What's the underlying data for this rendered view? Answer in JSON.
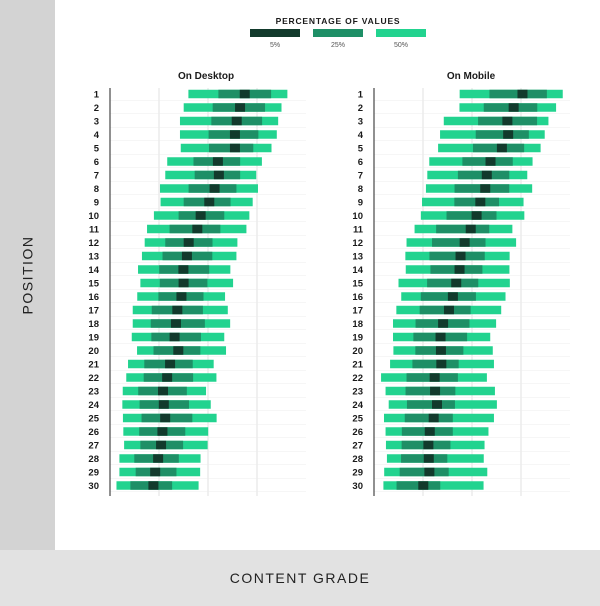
{
  "axes": {
    "y_label": "POSITION",
    "x_label": "CONTENT GRADE"
  },
  "legend": {
    "title": "PERCENTAGE OF VALUES",
    "items": [
      {
        "label": "5%",
        "color": "#123a2c"
      },
      {
        "label": "25%",
        "color": "#1e8f66"
      },
      {
        "label": "50%",
        "color": "#22d38f"
      }
    ]
  },
  "colors": {
    "median": "#123a2c",
    "band25": "#1e8f66",
    "band50": "#22d38f",
    "grid": "#d9d9d9",
    "axis": "#222222"
  },
  "chart_data": [
    {
      "type": "bar",
      "title": "On Desktop",
      "categories": [
        "1",
        "2",
        "3",
        "4",
        "5",
        "6",
        "7",
        "8",
        "9",
        "10",
        "11",
        "12",
        "13",
        "14",
        "15",
        "16",
        "17",
        "18",
        "19",
        "20",
        "21",
        "22",
        "23",
        "24",
        "25",
        "26",
        "27",
        "28",
        "29",
        "30"
      ],
      "series": [
        {
          "name": "50%",
          "values": [
            [
              0.4,
              0.905
            ],
            [
              0.376,
              0.875
            ],
            [
              0.357,
              0.858
            ],
            [
              0.357,
              0.851
            ],
            [
              0.361,
              0.824
            ],
            [
              0.292,
              0.775
            ],
            [
              0.282,
              0.746
            ],
            [
              0.255,
              0.755
            ],
            [
              0.258,
              0.728
            ],
            [
              0.224,
              0.711
            ],
            [
              0.189,
              0.696
            ],
            [
              0.177,
              0.65
            ],
            [
              0.163,
              0.645
            ],
            [
              0.143,
              0.614
            ],
            [
              0.155,
              0.628
            ],
            [
              0.139,
              0.587
            ],
            [
              0.116,
              0.601
            ],
            [
              0.116,
              0.613
            ],
            [
              0.111,
              0.583
            ],
            [
              0.138,
              0.592
            ],
            [
              0.092,
              0.529
            ],
            [
              0.083,
              0.543
            ],
            [
              0.065,
              0.49
            ],
            [
              0.063,
              0.514
            ],
            [
              0.066,
              0.544
            ],
            [
              0.068,
              0.501
            ],
            [
              0.072,
              0.498
            ],
            [
              0.048,
              0.462
            ],
            [
              0.048,
              0.46
            ],
            [
              0.033,
              0.452
            ]
          ]
        },
        {
          "name": "25%",
          "values": [
            [
              0.553,
              0.822
            ],
            [
              0.524,
              0.791
            ],
            [
              0.517,
              0.776
            ],
            [
              0.503,
              0.757
            ],
            [
              0.505,
              0.731
            ],
            [
              0.426,
              0.664
            ],
            [
              0.432,
              0.664
            ],
            [
              0.401,
              0.645
            ],
            [
              0.376,
              0.615
            ],
            [
              0.35,
              0.583
            ],
            [
              0.304,
              0.563
            ],
            [
              0.282,
              0.523
            ],
            [
              0.268,
              0.522
            ],
            [
              0.251,
              0.506
            ],
            [
              0.254,
              0.497
            ],
            [
              0.247,
              0.477
            ],
            [
              0.213,
              0.474
            ],
            [
              0.208,
              0.484
            ],
            [
              0.211,
              0.464
            ],
            [
              0.222,
              0.461
            ],
            [
              0.175,
              0.422
            ],
            [
              0.172,
              0.424
            ],
            [
              0.144,
              0.392
            ],
            [
              0.151,
              0.403
            ],
            [
              0.161,
              0.42
            ],
            [
              0.149,
              0.384
            ],
            [
              0.155,
              0.373
            ],
            [
              0.124,
              0.351
            ],
            [
              0.131,
              0.339
            ],
            [
              0.104,
              0.317
            ]
          ]
        },
        {
          "name": "5%",
          "values": [
            [
              0.662,
              0.713
            ],
            [
              0.638,
              0.689
            ],
            [
              0.621,
              0.672
            ],
            [
              0.612,
              0.663
            ],
            [
              0.612,
              0.663
            ],
            [
              0.525,
              0.576
            ],
            [
              0.53,
              0.581
            ],
            [
              0.508,
              0.559
            ],
            [
              0.481,
              0.532
            ],
            [
              0.437,
              0.488
            ],
            [
              0.42,
              0.471
            ],
            [
              0.376,
              0.427
            ],
            [
              0.367,
              0.418
            ],
            [
              0.349,
              0.4
            ],
            [
              0.35,
              0.401
            ],
            [
              0.339,
              0.39
            ],
            [
              0.318,
              0.369
            ],
            [
              0.311,
              0.362
            ],
            [
              0.304,
              0.355
            ],
            [
              0.323,
              0.374
            ],
            [
              0.281,
              0.332
            ],
            [
              0.266,
              0.317
            ],
            [
              0.245,
              0.296
            ],
            [
              0.249,
              0.3
            ],
            [
              0.256,
              0.307
            ],
            [
              0.242,
              0.293
            ],
            [
              0.235,
              0.286
            ],
            [
              0.22,
              0.271
            ],
            [
              0.205,
              0.256
            ],
            [
              0.196,
              0.247
            ]
          ]
        }
      ],
      "grid": true,
      "legend_position": "top-center"
    },
    {
      "type": "bar",
      "title": "On Mobile",
      "categories": [
        "1",
        "2",
        "3",
        "4",
        "5",
        "6",
        "7",
        "8",
        "9",
        "10",
        "11",
        "12",
        "13",
        "14",
        "15",
        "16",
        "17",
        "18",
        "19",
        "20",
        "21",
        "22",
        "23",
        "24",
        "25",
        "26",
        "27",
        "28",
        "29",
        "30"
      ],
      "series": [
        {
          "name": "50%",
          "values": [
            [
              0.437,
              0.963
            ],
            [
              0.436,
              0.929
            ],
            [
              0.356,
              0.89
            ],
            [
              0.337,
              0.871
            ],
            [
              0.327,
              0.85
            ],
            [
              0.282,
              0.809
            ],
            [
              0.272,
              0.782
            ],
            [
              0.265,
              0.807
            ],
            [
              0.245,
              0.763
            ],
            [
              0.239,
              0.767
            ],
            [
              0.207,
              0.706
            ],
            [
              0.166,
              0.725
            ],
            [
              0.16,
              0.692
            ],
            [
              0.162,
              0.691
            ],
            [
              0.125,
              0.693
            ],
            [
              0.139,
              0.671
            ],
            [
              0.114,
              0.649
            ],
            [
              0.097,
              0.623
            ],
            [
              0.097,
              0.593
            ],
            [
              0.099,
              0.606
            ],
            [
              0.082,
              0.612
            ],
            [
              0.036,
              0.576
            ],
            [
              0.059,
              0.617
            ],
            [
              0.075,
              0.627
            ],
            [
              0.051,
              0.612
            ],
            [
              0.059,
              0.584
            ],
            [
              0.061,
              0.564
            ],
            [
              0.066,
              0.56
            ],
            [
              0.052,
              0.578
            ],
            [
              0.048,
              0.559
            ]
          ]
        },
        {
          "name": "25%",
          "values": [
            [
              0.589,
              0.882
            ],
            [
              0.56,
              0.833
            ],
            [
              0.531,
              0.832
            ],
            [
              0.519,
              0.79
            ],
            [
              0.505,
              0.766
            ],
            [
              0.451,
              0.708
            ],
            [
              0.428,
              0.69
            ],
            [
              0.411,
              0.69
            ],
            [
              0.41,
              0.638
            ],
            [
              0.37,
              0.625
            ],
            [
              0.317,
              0.588
            ],
            [
              0.296,
              0.569
            ],
            [
              0.283,
              0.565
            ],
            [
              0.288,
              0.553
            ],
            [
              0.271,
              0.532
            ],
            [
              0.239,
              0.52
            ],
            [
              0.233,
              0.493
            ],
            [
              0.212,
              0.487
            ],
            [
              0.201,
              0.475
            ],
            [
              0.211,
              0.456
            ],
            [
              0.196,
              0.432
            ],
            [
              0.166,
              0.428
            ],
            [
              0.161,
              0.415
            ],
            [
              0.168,
              0.413
            ],
            [
              0.157,
              0.402
            ],
            [
              0.142,
              0.402
            ],
            [
              0.141,
              0.39
            ],
            [
              0.138,
              0.374
            ],
            [
              0.131,
              0.381
            ],
            [
              0.115,
              0.338
            ]
          ]
        },
        {
          "name": "5%",
          "values": [
            [
              0.732,
              0.783
            ],
            [
              0.687,
              0.738
            ],
            [
              0.655,
              0.706
            ],
            [
              0.659,
              0.71
            ],
            [
              0.627,
              0.678
            ],
            [
              0.569,
              0.62
            ],
            [
              0.55,
              0.601
            ],
            [
              0.542,
              0.593
            ],
            [
              0.517,
              0.568
            ],
            [
              0.498,
              0.549
            ],
            [
              0.468,
              0.519
            ],
            [
              0.437,
              0.488
            ],
            [
              0.416,
              0.467
            ],
            [
              0.411,
              0.462
            ],
            [
              0.394,
              0.445
            ],
            [
              0.377,
              0.428
            ],
            [
              0.357,
              0.408
            ],
            [
              0.327,
              0.378
            ],
            [
              0.314,
              0.365
            ],
            [
              0.316,
              0.367
            ],
            [
              0.318,
              0.369
            ],
            [
              0.284,
              0.335
            ],
            [
              0.286,
              0.337
            ],
            [
              0.296,
              0.347
            ],
            [
              0.279,
              0.33
            ],
            [
              0.259,
              0.31
            ],
            [
              0.252,
              0.303
            ],
            [
              0.254,
              0.305
            ],
            [
              0.257,
              0.308
            ],
            [
              0.226,
              0.277
            ]
          ]
        }
      ],
      "grid": true,
      "legend_position": "top-center"
    }
  ]
}
